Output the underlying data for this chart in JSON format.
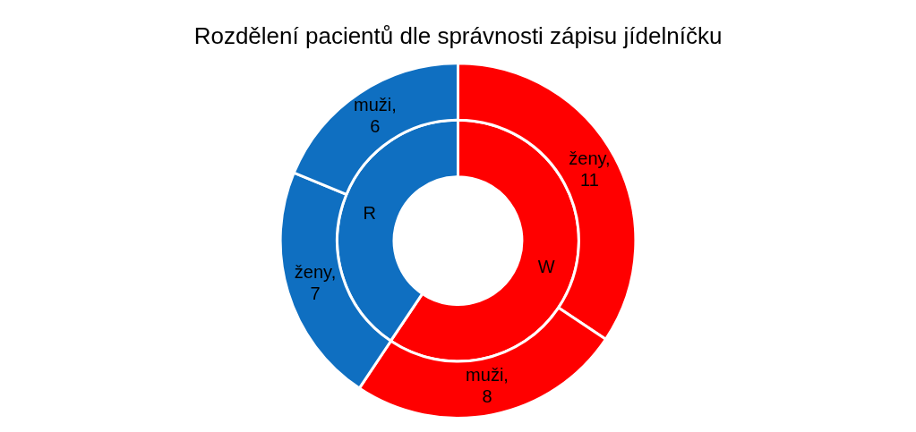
{
  "chart_data": {
    "type": "donut",
    "title": "Rozdělení pacientů dle správnosti zápisu jídelníčku",
    "series": [
      {
        "values": [
          11,
          8,
          7,
          6
        ],
        "colors": [
          "#ff0000",
          "#ff0000",
          "#0f6fc1",
          "#0f6fc1"
        ],
        "value_labels": [
          "ženy, 11",
          "muži, 8",
          "ženy, 7",
          "muži, 6"
        ]
      },
      {
        "values": [
          59.4,
          40.6
        ],
        "colors": [
          "#ff0000",
          "#0f6fc1"
        ],
        "value_labels": [
          "W",
          "R"
        ]
      }
    ]
  }
}
